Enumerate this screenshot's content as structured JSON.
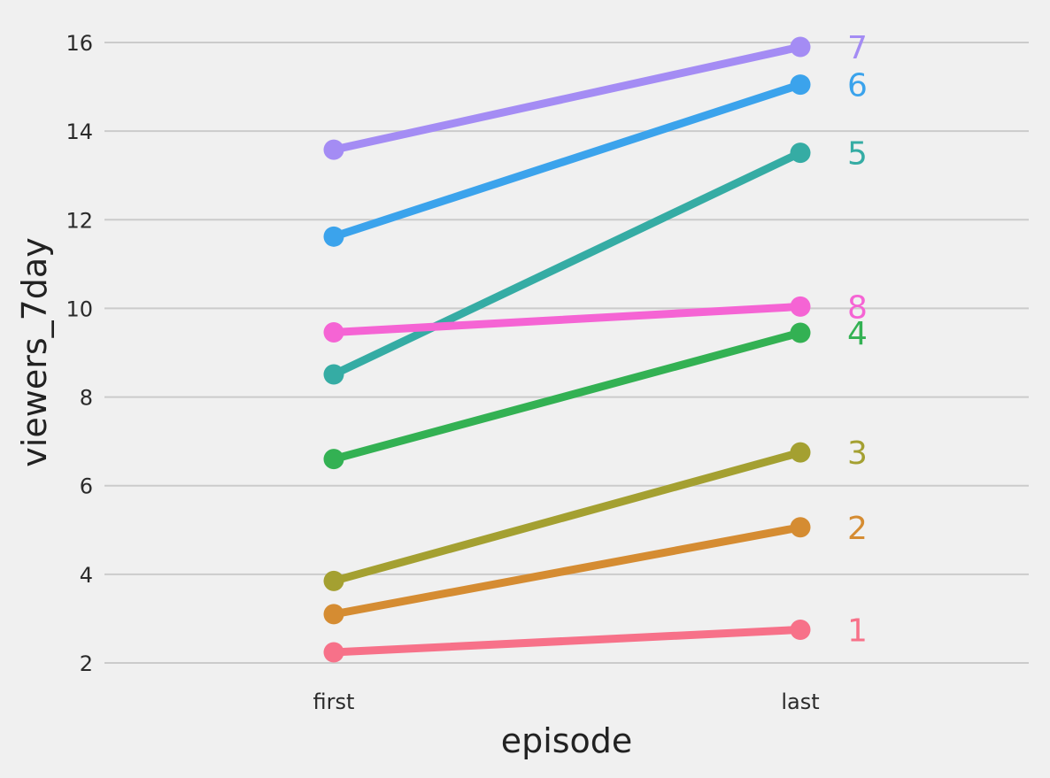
{
  "chart_data": {
    "type": "line",
    "xlabel": "episode",
    "ylabel": "viewers_7day",
    "categories": [
      "first",
      "last"
    ],
    "ylim": [
      1.6,
      16.8
    ],
    "yticks": [
      2,
      4,
      6,
      8,
      10,
      12,
      14,
      16
    ],
    "grid": "horizontal",
    "legend": "none",
    "series": [
      {
        "name": "1",
        "values": [
          2.24,
          2.75
        ],
        "color": "#f77189"
      },
      {
        "name": "2",
        "values": [
          3.1,
          5.06
        ],
        "color": "#d58c32"
      },
      {
        "name": "3",
        "values": [
          3.85,
          6.75
        ],
        "color": "#a4a031"
      },
      {
        "name": "4",
        "values": [
          6.6,
          9.45
        ],
        "color": "#33b153"
      },
      {
        "name": "5",
        "values": [
          8.51,
          13.51
        ],
        "color": "#35aca4"
      },
      {
        "name": "6",
        "values": [
          11.62,
          15.05
        ],
        "color": "#3ba3ec"
      },
      {
        "name": "7",
        "values": [
          13.58,
          15.9
        ],
        "color": "#a48cf4"
      },
      {
        "name": "8",
        "values": [
          9.46,
          10.04
        ],
        "color": "#f564d4"
      }
    ]
  }
}
